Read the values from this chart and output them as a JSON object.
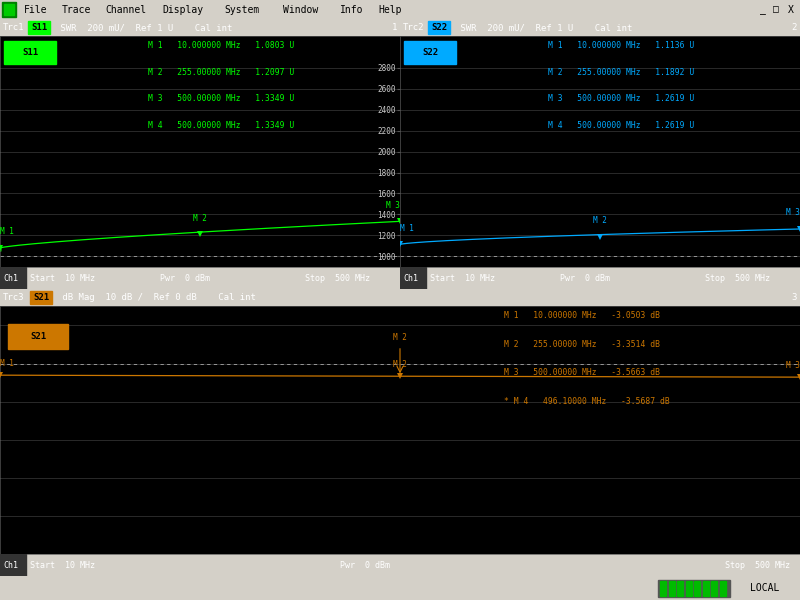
{
  "bg_color": "#000000",
  "menubar_bg": "#d4d0c8",
  "grid_color": "#3a3a3a",
  "s11_color": "#00ff00",
  "s22_color": "#00aaff",
  "s21_color": "#cc7700",
  "menu_items": [
    "File",
    "Trace",
    "Channel",
    "Display",
    "System",
    "Window",
    "Info",
    "Help"
  ],
  "s11_markers_text": [
    "M 1   10.000000 MHz   1.0803 U",
    "M 2   255.00000 MHz   1.2097 U",
    "M 3   500.00000 MHz   1.3349 U",
    "M 4   500.00000 MHz   1.3349 U"
  ],
  "s22_markers_text": [
    "M 1   10.000000 MHz   1.1136 U",
    "M 2   255.00000 MHz   1.1892 U",
    "M 3   500.00000 MHz   1.2619 U",
    "M 4   500.00000 MHz   1.2619 U"
  ],
  "s21_markers_text": [
    "M 1   10.000000 MHz   -3.0503 dB",
    "M 2   255.00000 MHz   -3.3514 dB",
    "M 3   500.00000 MHz   -3.5663 dB",
    "* M 4   496.10000 MHz   -3.5687 dB"
  ],
  "s11_marker_freqs": [
    10,
    255,
    500
  ],
  "s11_marker_vals": [
    1080.3,
    1209.7,
    1334.9
  ],
  "s22_marker_freqs": [
    10,
    255,
    500
  ],
  "s22_marker_vals": [
    1113.6,
    1189.2,
    1261.9
  ],
  "s21_marker_freqs": [
    10,
    255,
    500
  ],
  "s21_marker_vals": [
    -3.0503,
    -3.3514,
    -3.5663
  ],
  "footer": "Ch1    Start  10 MHz                        Pwr  0 dBm                                  Stop  500 MHz"
}
